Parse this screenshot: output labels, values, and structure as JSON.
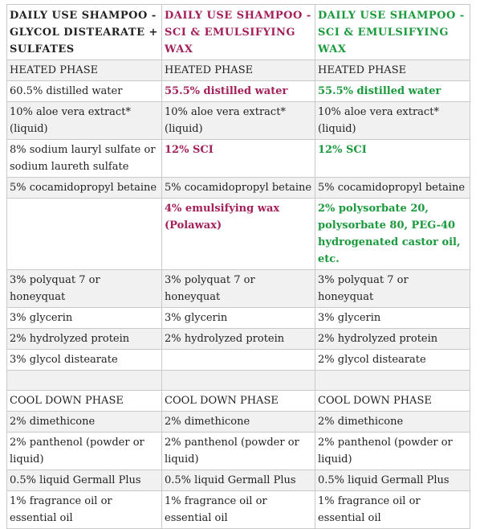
{
  "headers": [
    {
      "text": "DAILY USE SHAMPOO - GLYCOL DISTEARATE + SULFATES",
      "color": "#222222"
    },
    {
      "text": "DAILY USE SHAMPOO - SCI & EMULSIFYING WAX",
      "color": "#a3205a"
    },
    {
      "text": "DAILY USE SHAMPOO - SCI & EMULSIFYING WAX",
      "color": "#1a9a3c"
    }
  ],
  "rows": [
    {
      "c1": "HEATED PHASE",
      "c2": "HEATED PHASE",
      "c3": "HEATED PHASE"
    },
    {
      "c1": "60.5% distilled water",
      "c2": "55.5% distilled water",
      "c3": "55.5% distilled water"
    },
    {
      "c1": "10% aloe vera extract* (liquid)",
      "c2": "10% aloe vera extract* (liquid)",
      "c3": "10% aloe vera extract* (liquid)"
    },
    {
      "c1": "8% sodium lauryl sulfate or sodium laureth sulfate",
      "c2": "12% SCI",
      "c3": "12% SCI"
    },
    {
      "c1": "5% cocamidopropyl betaine",
      "c2": "5% cocamidopropyl betaine",
      "c3": "5% cocamidopropyl betaine"
    },
    {
      "c1": "",
      "c2": "4% emulsifying wax (Polawax)",
      "c3": "2% polysorbate 20, polysorbate 80, PEG-40 hydrogenated castor oil, etc."
    },
    {
      "c1": "3% polyquat 7 or honeyquat",
      "c2": "3% polyquat 7 or honeyquat",
      "c3": "3% polyquat 7 or honeyquat"
    },
    {
      "c1": "3% glycerin",
      "c2": "3% glycerin",
      "c3": "3% glycerin"
    },
    {
      "c1": "2% hydrolyzed protein",
      "c2": "2% hydrolyzed protein",
      "c3": "2% hydrolyzed protein"
    },
    {
      "c1": "3% glycol distearate",
      "c2": "",
      "c3": "2% glycol distearate"
    },
    {
      "c1": "",
      "c2": "",
      "c3": ""
    },
    {
      "c1": "COOL DOWN PHASE",
      "c2": "COOL DOWN PHASE",
      "c3": "COOL DOWN PHASE"
    },
    {
      "c1": "2% dimethicone",
      "c2": "2% dimethicone",
      "c3": "2% dimethicone"
    },
    {
      "c1": "2% panthenol (powder or liquid)",
      "c2": "2% panthenol (powder or liquid)",
      "c3": "2% panthenol (powder or liquid)"
    },
    {
      "c1": "0.5% liquid Germall Plus",
      "c2": "0.5% liquid Germall Plus",
      "c3": "0.5% liquid Germall Plus"
    },
    {
      "c1": "1% fragrance oil or essential oil",
      "c2": "1% fragrance oil or essential oil",
      "c3": "1% fragrance oil or essential oil"
    }
  ]
}
